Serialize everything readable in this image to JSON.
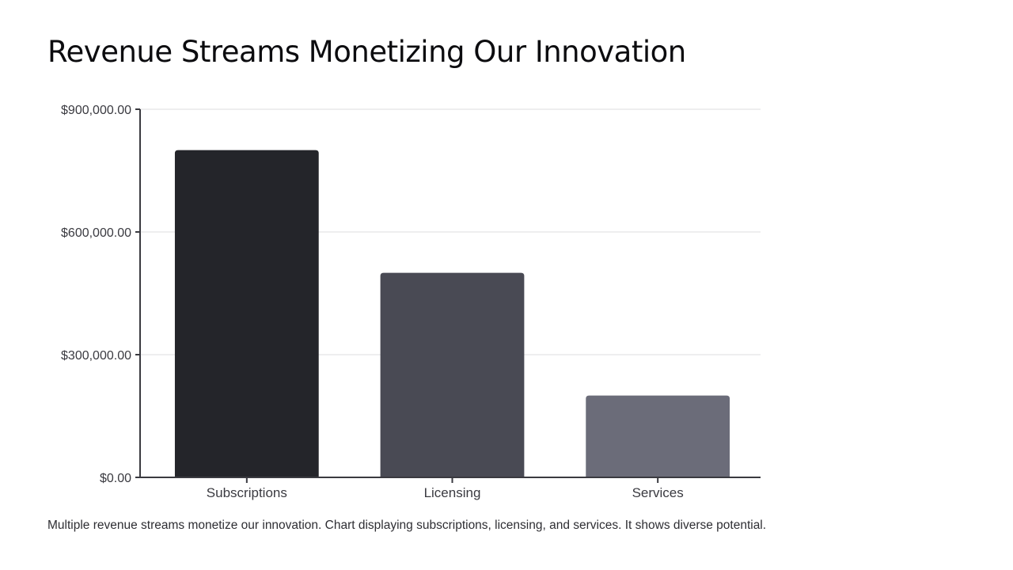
{
  "slide": {
    "title": "Revenue Streams Monetizing Our Innovation",
    "caption": "Multiple revenue streams monetize our innovation. Chart displaying subscriptions, licensing, and services. It shows diverse potential."
  },
  "chart_data": {
    "type": "bar",
    "title": "",
    "xlabel": "",
    "ylabel": "",
    "categories": [
      "Subscriptions",
      "Licensing",
      "Services"
    ],
    "values": [
      800000,
      500000,
      200000
    ],
    "ylim": [
      0,
      900000
    ],
    "yticks": [
      0,
      300000,
      600000,
      900000
    ],
    "ytick_labels": [
      "$0.00",
      "$300,000.00",
      "$600,000.00",
      "$900,000.00"
    ],
    "bar_colors": [
      "#24252a",
      "#494a54",
      "#6b6c79"
    ],
    "grid": true,
    "legend": "none"
  }
}
